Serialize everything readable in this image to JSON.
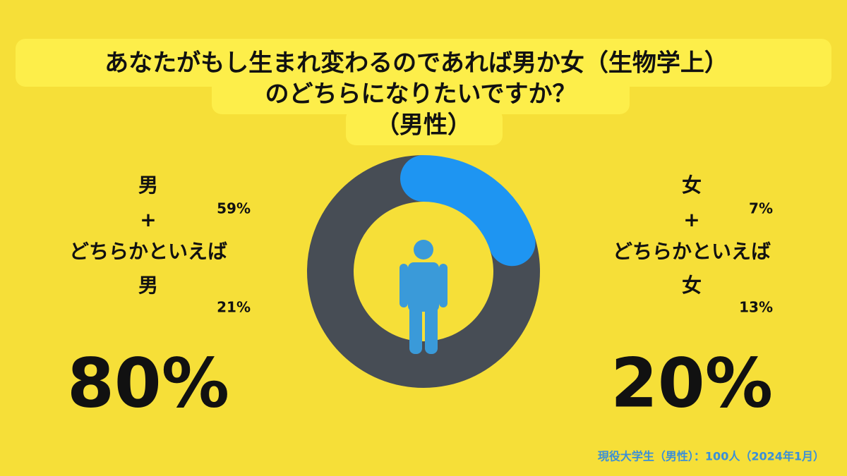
{
  "chart_data": {
    "type": "donut",
    "title_lines": [
      "あなたがもし生まれ変わるのであれば男か女（生物学上）",
      "のどちらになりたいですか？",
      "（男性）"
    ],
    "categories": [
      "男",
      "女"
    ],
    "values": [
      80,
      20
    ],
    "value_labels": [
      "80%",
      "20%"
    ],
    "colors": [
      "#474d55",
      "#1e95f2"
    ],
    "groups": [
      {
        "label_lines": [
          "男",
          "+",
          "どちらかといえば",
          "男"
        ],
        "parts": [
          59,
          21
        ],
        "part_labels": [
          "59%",
          "21%"
        ]
      },
      {
        "label_lines": [
          "女",
          "+",
          "どちらかといえば",
          "女"
        ],
        "parts": [
          7,
          13
        ],
        "part_labels": [
          "7%",
          "13%"
        ]
      }
    ],
    "footnote": "現役大学生（男性）：100人（2024年1月）"
  }
}
